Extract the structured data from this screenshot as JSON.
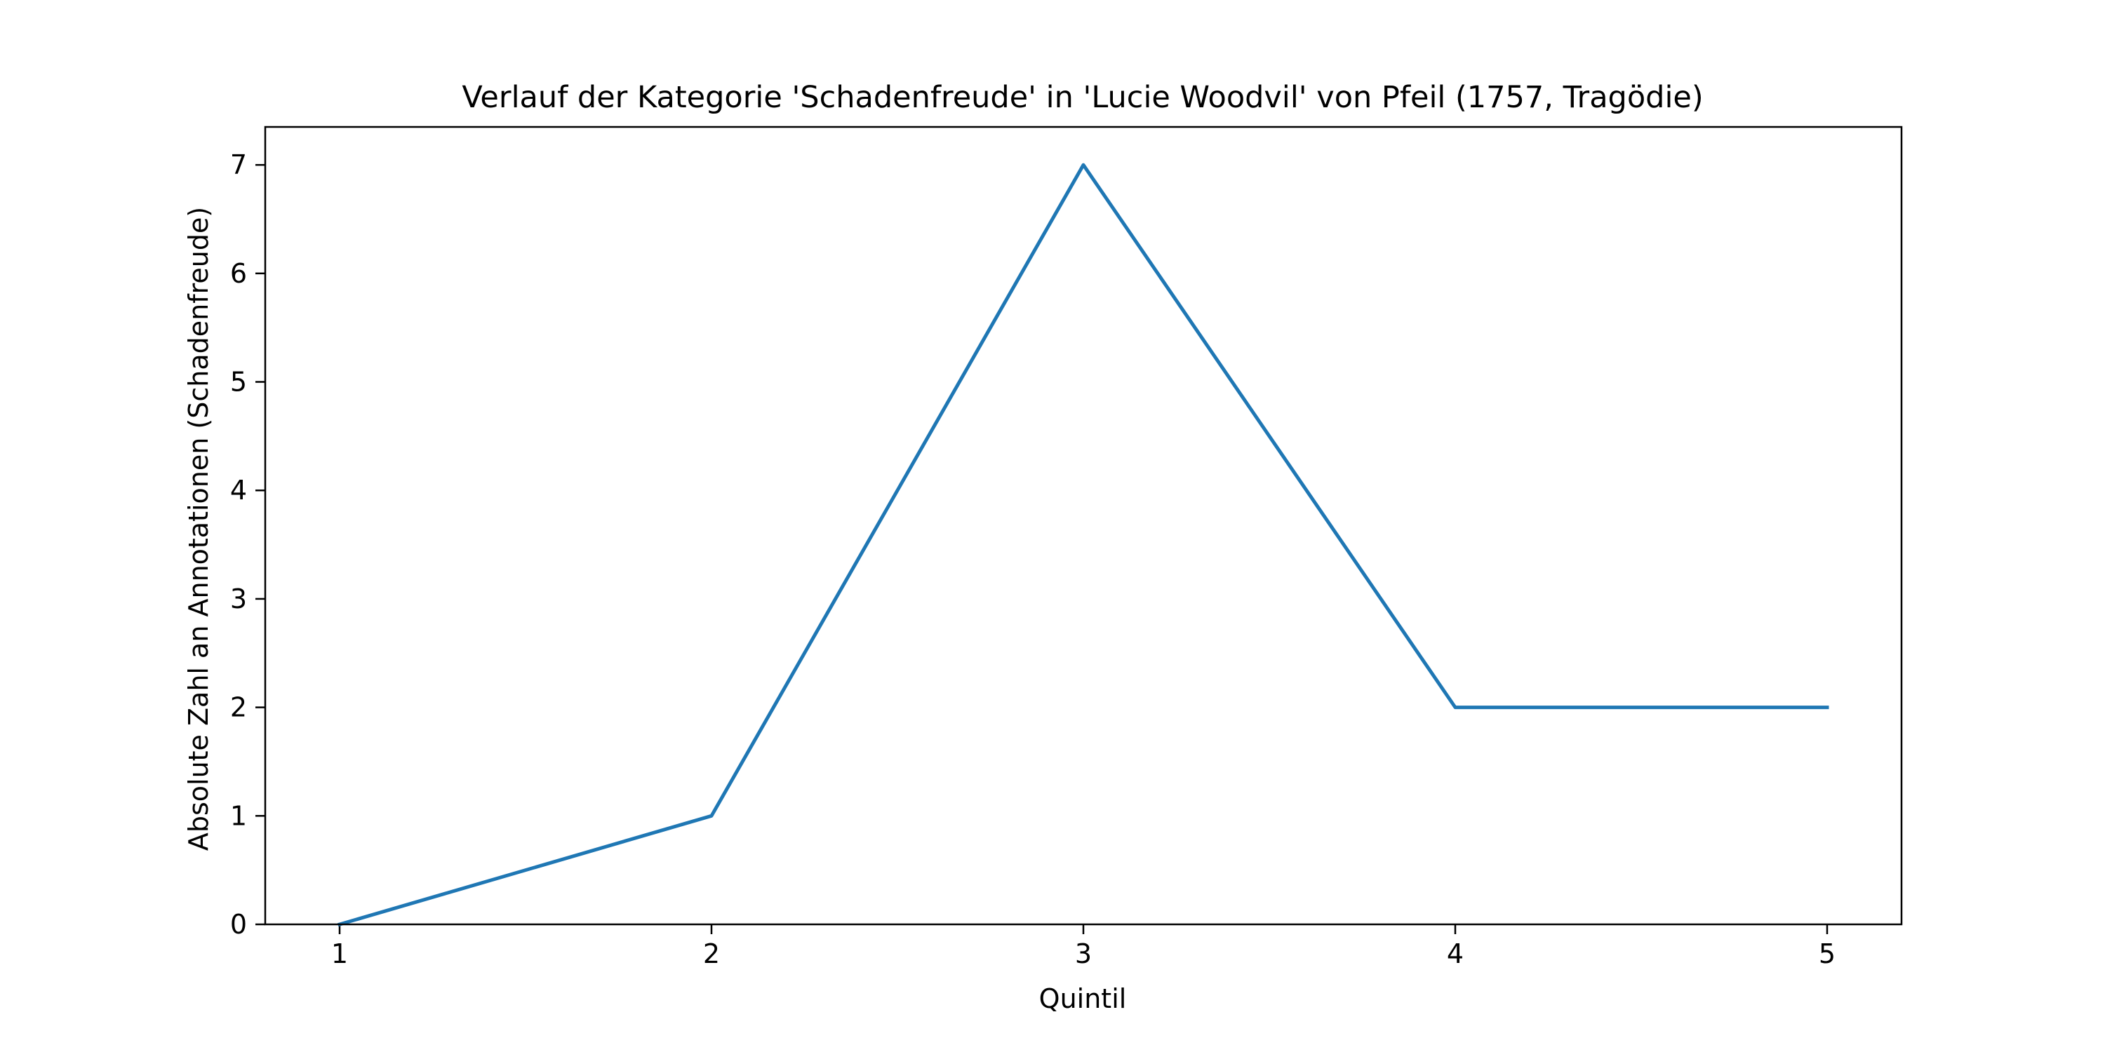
{
  "chart_data": {
    "type": "line",
    "title": "Verlauf der Kategorie 'Schadenfreude' in 'Lucie Woodvil' von Pfeil (1757, Tragödie)",
    "xlabel": "Quintil",
    "ylabel": "Absolute Zahl an Annotationen (Schadenfreude)",
    "x": [
      1,
      2,
      3,
      4,
      5
    ],
    "series": [
      {
        "values": [
          0,
          1,
          7,
          2,
          2
        ]
      }
    ],
    "xticks": [
      "1",
      "2",
      "3",
      "4",
      "5"
    ],
    "yticks": [
      "0",
      "1",
      "2",
      "3",
      "4",
      "5",
      "6",
      "7"
    ],
    "xlim": [
      0.8,
      5.2
    ],
    "ylim": [
      0,
      7.35
    ],
    "grid": false,
    "legend": "none",
    "line_color": "#1f77b4",
    "axis_color": "#000000",
    "background_color": "#ffffff"
  }
}
